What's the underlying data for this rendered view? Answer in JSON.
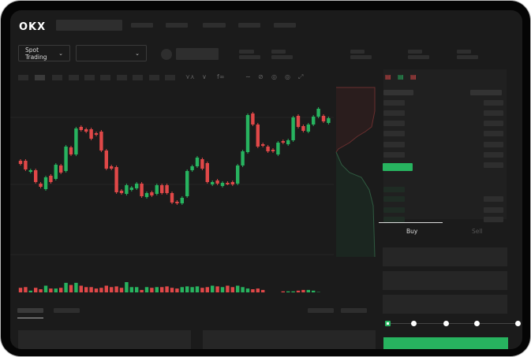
{
  "header": {
    "logo": "OKX"
  },
  "toolbar": {
    "market_select": "Spot Trading",
    "chevron": "⌄"
  },
  "trade_form": {
    "buy_tab": "Buy",
    "sell_tab": "Sell",
    "leverage_steps": 5,
    "selected_step": 0
  },
  "colors": {
    "up": "#27b35f",
    "down": "#e04848",
    "background": "#1b1b1b",
    "accent": "#27b35f"
  },
  "chart_data": {
    "type": "candlestick",
    "candles": [
      [
        97,
        93
      ],
      [
        97,
        86
      ],
      [
        83,
        85
      ],
      [
        85,
        70
      ],
      [
        68,
        64
      ],
      [
        61,
        76
      ],
      [
        78,
        70
      ],
      [
        74,
        92
      ],
      [
        91,
        82
      ],
      [
        84,
        115
      ],
      [
        114,
        105
      ],
      [
        105,
        138
      ],
      [
        140,
        136
      ],
      [
        137,
        134
      ],
      [
        137,
        125
      ],
      [
        132,
        130
      ],
      [
        134,
        110
      ],
      [
        110,
        87
      ],
      [
        90,
        87
      ],
      [
        89,
        57
      ],
      [
        59,
        56
      ],
      [
        55,
        66
      ],
      [
        60,
        63
      ],
      [
        62,
        68
      ],
      [
        68,
        52
      ],
      [
        51,
        56
      ],
      [
        57,
        53
      ],
      [
        55,
        66
      ],
      [
        66,
        56
      ],
      [
        66,
        56
      ],
      [
        56,
        44
      ],
      [
        45,
        43
      ],
      [
        43,
        50
      ],
      [
        52,
        84
      ],
      [
        85,
        90
      ],
      [
        90,
        101
      ],
      [
        99,
        87
      ],
      [
        94,
        70
      ],
      [
        67,
        70
      ],
      [
        72,
        68
      ],
      [
        65,
        69
      ],
      [
        69,
        68
      ],
      [
        70,
        67
      ],
      [
        68,
        91
      ],
      [
        91,
        109
      ],
      [
        108,
        155
      ],
      [
        157,
        143
      ],
      [
        143,
        115
      ],
      [
        118,
        116
      ],
      [
        115,
        109
      ],
      [
        111,
        109
      ],
      [
        105,
        120
      ],
      [
        122,
        120
      ],
      [
        118,
        123
      ],
      [
        123,
        152
      ],
      [
        154,
        140
      ],
      [
        141,
        135
      ],
      [
        134,
        143
      ],
      [
        143,
        153
      ],
      [
        153,
        163
      ],
      [
        154,
        147
      ],
      [
        145,
        151
      ]
    ],
    "volumes": [
      12,
      13,
      8,
      12,
      10,
      15,
      11,
      11,
      12,
      19,
      16,
      19,
      15,
      13,
      13,
      11,
      12,
      15,
      13,
      14,
      12,
      20,
      13,
      13,
      9,
      13,
      12,
      13,
      13,
      14,
      12,
      11,
      13,
      14,
      13,
      14,
      12,
      13,
      15,
      14,
      13,
      15,
      13,
      15,
      13,
      11,
      10,
      11,
      9,
      3,
      2,
      4,
      7,
      7,
      7,
      8,
      9,
      9,
      8,
      6,
      3,
      4
    ]
  }
}
